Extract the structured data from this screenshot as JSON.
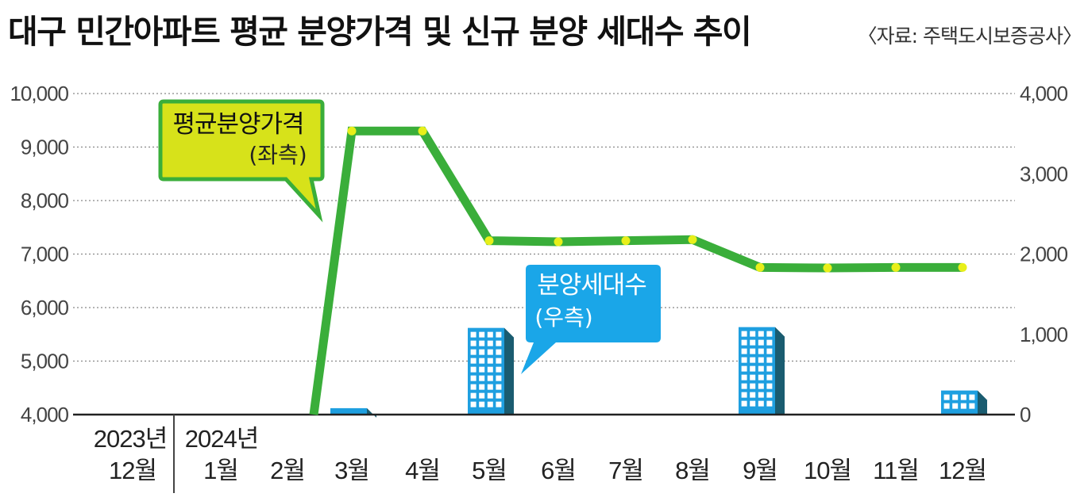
{
  "title": "대구 민간아파트 평균 분양가격 및 신규 분양 세대수 추이",
  "source": "〈자료: 주택도시보증공사〉",
  "colors": {
    "price_line": "#3aae3a",
    "price_marker": "#e8ef1a",
    "building_face": "#1e9fe0",
    "building_side": "#1a5c70",
    "price_callout_bg": "#d7e21a",
    "units_callout_bg": "#1aa6e8"
  },
  "chart_data": {
    "type": "line+bar",
    "categories": [
      "2023년 12월",
      "2024년 1월",
      "2월",
      "3월",
      "4월",
      "5월",
      "6월",
      "7월",
      "8월",
      "9월",
      "10월",
      "11월",
      "12월"
    ],
    "x_tick_top": [
      "2023년",
      "2024년"
    ],
    "x_tick_bottom": [
      "12월",
      "1월",
      "2월",
      "3월",
      "4월",
      "5월",
      "6월",
      "7월",
      "8월",
      "9월",
      "10월",
      "11월",
      "12월"
    ],
    "left_axis": {
      "ylim": [
        4000,
        10000
      ],
      "ticks": [
        "4,000",
        "5,000",
        "6,000",
        "7,000",
        "8,000",
        "9,000",
        "10,000"
      ]
    },
    "right_axis": {
      "ylim": [
        0,
        4000
      ],
      "ticks": [
        "0",
        "1,000",
        "2,000",
        "3,000",
        "4,000"
      ]
    },
    "series": [
      {
        "name": "평균분양가격",
        "axis_note": "(좌측)",
        "type": "line",
        "values": [
          null,
          null,
          null,
          9300,
          9300,
          7250,
          7230,
          7250,
          7270,
          6750,
          6740,
          6750,
          6750
        ]
      },
      {
        "name": "분양세대수",
        "axis_note": "(우측)",
        "type": "bar",
        "values": [
          0,
          0,
          0,
          80,
          0,
          1080,
          0,
          0,
          0,
          1090,
          0,
          0,
          300
        ]
      }
    ],
    "grid": "horizontal dotted"
  }
}
